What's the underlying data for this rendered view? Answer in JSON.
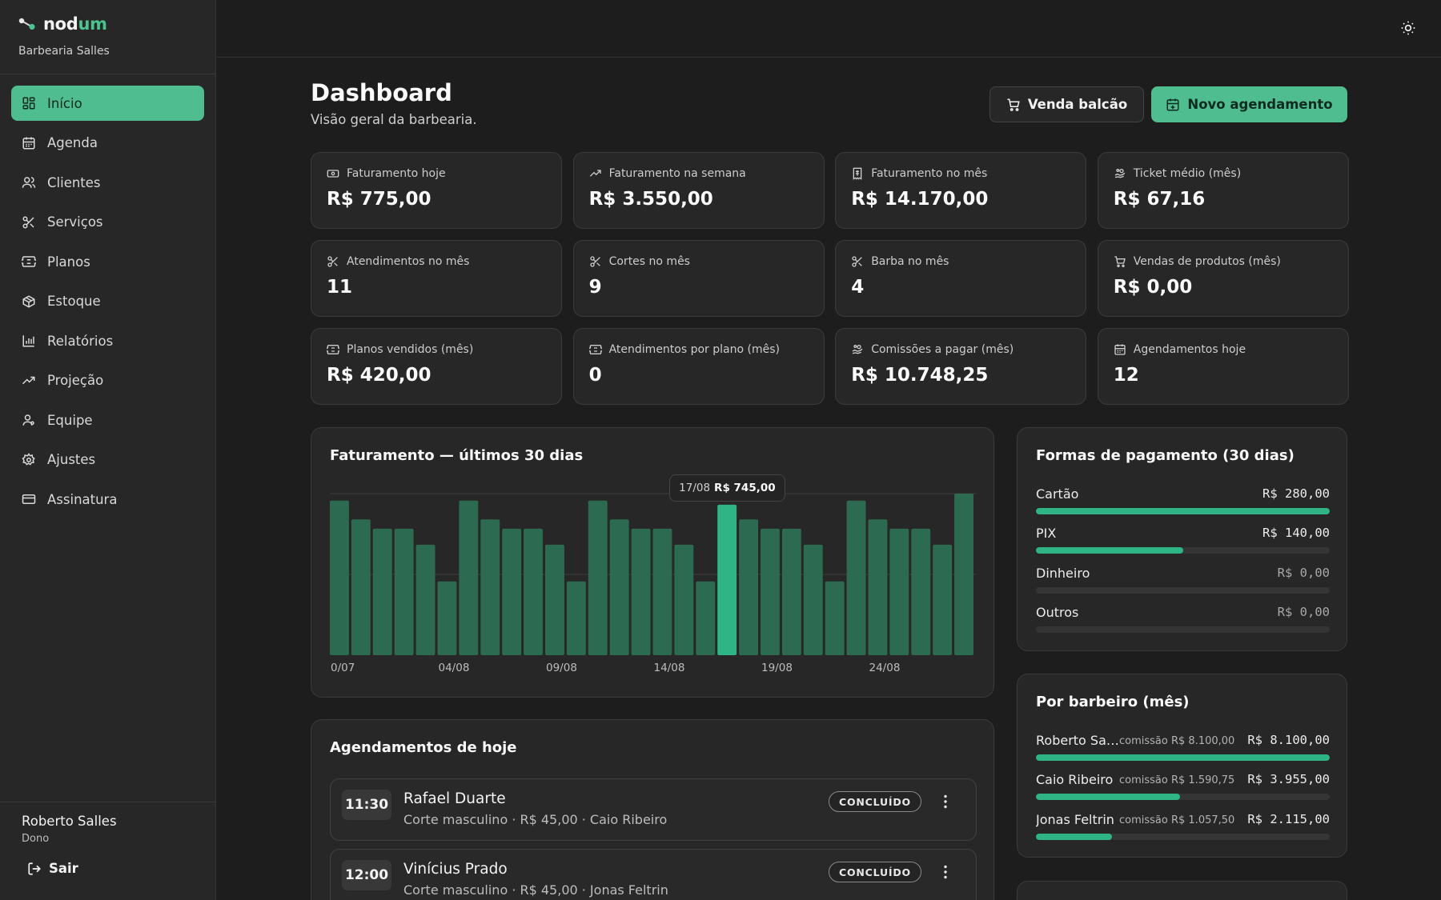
{
  "brand": {
    "name_main": "nod",
    "name_accent": "um",
    "subtitle": "Barbearia Salles",
    "accent_color": "#4fbd8f"
  },
  "sidebar": {
    "items": [
      {
        "label": "Início",
        "icon": "grid-icon",
        "active": true
      },
      {
        "label": "Agenda",
        "icon": "calendar-icon"
      },
      {
        "label": "Clientes",
        "icon": "users-icon"
      },
      {
        "label": "Serviços",
        "icon": "scissors-icon"
      },
      {
        "label": "Planos",
        "icon": "ticket-icon"
      },
      {
        "label": "Estoque",
        "icon": "box-icon"
      },
      {
        "label": "Relatórios",
        "icon": "bar-chart-icon"
      },
      {
        "label": "Projeção",
        "icon": "trending-up-icon"
      },
      {
        "label": "Equipe",
        "icon": "team-icon"
      },
      {
        "label": "Ajustes",
        "icon": "gear-icon"
      },
      {
        "label": "Assinatura",
        "icon": "credit-card-icon"
      }
    ],
    "user": {
      "name": "Roberto Salles",
      "role": "Dono"
    },
    "logout_label": "Sair"
  },
  "header": {
    "title": "Dashboard",
    "subtitle": "Visão geral da barbearia.",
    "btn_counter_sale": "Venda balcão",
    "btn_new_appointment": "Novo agendamento"
  },
  "stats": [
    {
      "label": "Faturamento hoje",
      "value": "R$ 775,00",
      "icon": "cash-icon"
    },
    {
      "label": "Faturamento na semana",
      "value": "R$ 3.550,00",
      "icon": "trending-up-icon"
    },
    {
      "label": "Faturamento no mês",
      "value": "R$ 14.170,00",
      "icon": "receipt-icon"
    },
    {
      "label": "Ticket médio (mês)",
      "value": "R$ 67,16",
      "icon": "hand-coins-icon"
    },
    {
      "label": "Atendimentos no mês",
      "value": "11",
      "icon": "scissors-icon"
    },
    {
      "label": "Cortes no mês",
      "value": "9",
      "icon": "scissors-icon"
    },
    {
      "label": "Barba no mês",
      "value": "4",
      "icon": "scissors-icon"
    },
    {
      "label": "Vendas de produtos (mês)",
      "value": "R$ 0,00",
      "icon": "cart-icon"
    },
    {
      "label": "Planos vendidos (mês)",
      "value": "R$ 420,00",
      "icon": "ticket-icon"
    },
    {
      "label": "Atendimentos por plano (mês)",
      "value": "0",
      "icon": "ticket-icon"
    },
    {
      "label": "Comissões a pagar (mês)",
      "value": "R$ 10.748,25",
      "icon": "hand-coins-icon"
    },
    {
      "label": "Agendamentos hoje",
      "value": "12",
      "icon": "calendar-icon"
    }
  ],
  "chart_data": {
    "type": "bar",
    "title": "Faturamento — últimos 30 dias",
    "x_tick_labels": [
      "0/07",
      "04/08",
      "09/08",
      "14/08",
      "19/08",
      "24/08"
    ],
    "x_tick_indices": [
      0,
      5,
      10,
      15,
      20,
      25
    ],
    "values": [
      765,
      672,
      626,
      626,
      547,
      365,
      765,
      672,
      626,
      626,
      547,
      365,
      765,
      672,
      626,
      626,
      547,
      365,
      745,
      672,
      626,
      626,
      547,
      365,
      765,
      672,
      626,
      626,
      547,
      800
    ],
    "highlight_index": 18,
    "tooltip": {
      "date": "17/08",
      "value": "R$ 745,00"
    },
    "ylim": [
      0,
      800
    ],
    "grid": true,
    "colors": {
      "bar": "#2c6b51",
      "highlight": "#2fb585"
    }
  },
  "payments": {
    "title": "Formas de pagamento (30 dias)",
    "items": [
      {
        "label": "Cartão",
        "amount": "R$ 280,00",
        "fraction": 1.0
      },
      {
        "label": "PIX",
        "amount": "R$ 140,00",
        "fraction": 0.5
      },
      {
        "label": "Dinheiro",
        "amount": "R$ 0,00",
        "fraction": 0
      },
      {
        "label": "Outros",
        "amount": "R$ 0,00",
        "fraction": 0
      }
    ]
  },
  "barbers": {
    "title": "Por barbeiro (mês)",
    "items": [
      {
        "name": "Roberto Salles",
        "commission": "comissão R$ 8.100,00",
        "amount": "R$ 8.100,00",
        "fraction": 1.0
      },
      {
        "name": "Caio Ribeiro",
        "commission": "comissão R$ 1.590,75",
        "amount": "R$ 3.955,00",
        "fraction": 0.49
      },
      {
        "name": "Jonas Feltrin",
        "commission": "comissão R$ 1.057,50",
        "amount": "R$ 2.115,00",
        "fraction": 0.26
      }
    ]
  },
  "appointments": {
    "title": "Agendamentos de hoje",
    "items": [
      {
        "time": "11:30",
        "client": "Rafael Duarte",
        "detail": "Corte masculino · R$ 45,00 · Caio Ribeiro",
        "status": "CONCLUÍDO"
      },
      {
        "time": "12:00",
        "client": "Vinícius Prado",
        "detail": "Corte masculino · R$ 45,00 · Jonas Feltrin",
        "status": "CONCLUÍDO"
      }
    ]
  }
}
